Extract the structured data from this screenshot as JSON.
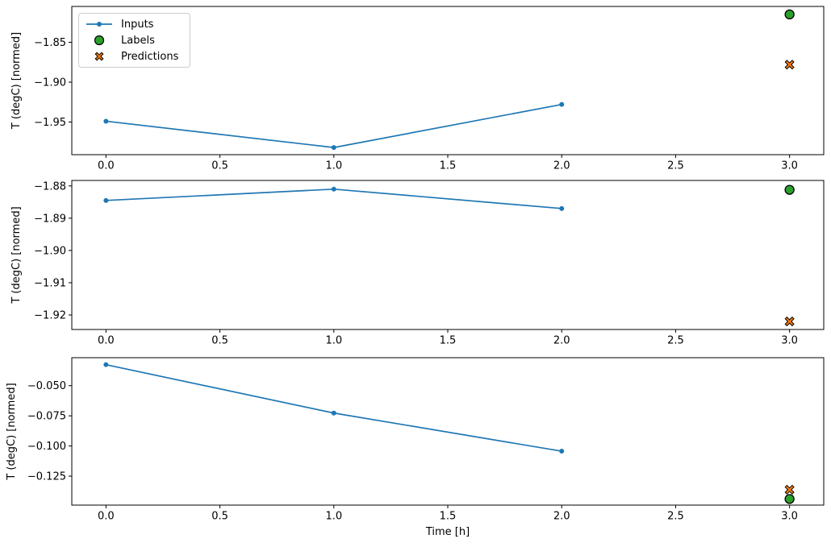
{
  "figure": {
    "background": "#ffffff",
    "xlabel": "Time [h]",
    "ylabel": "T (degC) [normed]",
    "colors": {
      "inputs": "#1f77b4",
      "labels": "#2ca02c",
      "predictions": "#ff7f0e",
      "marker_edge": "#000000",
      "spine": "#000000",
      "legend_border": "#cccccc"
    },
    "legend": {
      "position": "upper left",
      "items": [
        {
          "label": "Inputs",
          "marker": "line-with-dot",
          "color": "#1f77b4"
        },
        {
          "label": "Labels",
          "marker": "filled-circle",
          "color": "#2ca02c"
        },
        {
          "label": "Predictions",
          "marker": "filled-x",
          "color": "#ff7f0e"
        }
      ]
    }
  },
  "chart_data": [
    {
      "type": "line",
      "subplot": 1,
      "title": "",
      "xlabel": "",
      "ylabel": "T (degC) [normed]",
      "grid": false,
      "xlim": [
        -0.15,
        3.15
      ],
      "ylim": [
        -1.991,
        -1.805
      ],
      "xticks": [
        0.0,
        0.5,
        1.0,
        1.5,
        2.0,
        2.5,
        3.0
      ],
      "xtick_labels": [
        "0.0",
        "0.5",
        "1.0",
        "1.5",
        "2.0",
        "2.5",
        "3.0"
      ],
      "yticks": [
        -1.85,
        -1.9,
        -1.95
      ],
      "ytick_labels": [
        "−1.85",
        "−1.90",
        "−1.95"
      ],
      "series": [
        {
          "name": "Inputs",
          "type": "line",
          "color": "#1f77b4",
          "x": [
            0.0,
            1.0,
            2.0
          ],
          "y": [
            -1.949,
            -1.982,
            -1.928
          ]
        },
        {
          "name": "Labels",
          "type": "scatter",
          "marker": "circle",
          "color": "#2ca02c",
          "edge": "#000000",
          "x": [
            3.0
          ],
          "y": [
            -1.815
          ]
        },
        {
          "name": "Predictions",
          "type": "scatter",
          "marker": "X",
          "color": "#ff7f0e",
          "edge": "#000000",
          "x": [
            3.0
          ],
          "y": [
            -1.878
          ]
        }
      ]
    },
    {
      "type": "line",
      "subplot": 2,
      "title": "",
      "xlabel": "",
      "ylabel": "T (degC) [normed]",
      "grid": false,
      "xlim": [
        -0.15,
        3.15
      ],
      "ylim": [
        -1.9245,
        -1.8783
      ],
      "xticks": [
        0.0,
        0.5,
        1.0,
        1.5,
        2.0,
        2.5,
        3.0
      ],
      "xtick_labels": [
        "0.0",
        "0.5",
        "1.0",
        "1.5",
        "2.0",
        "2.5",
        "3.0"
      ],
      "yticks": [
        -1.88,
        -1.89,
        -1.9,
        -1.91,
        -1.92
      ],
      "ytick_labels": [
        "−1.88",
        "−1.89",
        "−1.90",
        "−1.91",
        "−1.92"
      ],
      "series": [
        {
          "name": "Inputs",
          "type": "line",
          "color": "#1f77b4",
          "x": [
            0.0,
            1.0,
            2.0
          ],
          "y": [
            -1.8845,
            -1.881,
            -1.887
          ]
        },
        {
          "name": "Labels",
          "type": "scatter",
          "marker": "circle",
          "color": "#2ca02c",
          "edge": "#000000",
          "x": [
            3.0
          ],
          "y": [
            -1.8812
          ]
        },
        {
          "name": "Predictions",
          "type": "scatter",
          "marker": "X",
          "color": "#ff7f0e",
          "edge": "#000000",
          "x": [
            3.0
          ],
          "y": [
            -1.922
          ]
        }
      ]
    },
    {
      "type": "line",
      "subplot": 3,
      "title": "",
      "xlabel": "Time [h]",
      "ylabel": "T (degC) [normed]",
      "grid": false,
      "xlim": [
        -0.15,
        3.15
      ],
      "ylim": [
        -0.149,
        -0.0268
      ],
      "xticks": [
        0.0,
        0.5,
        1.0,
        1.5,
        2.0,
        2.5,
        3.0
      ],
      "xtick_labels": [
        "0.0",
        "0.5",
        "1.0",
        "1.5",
        "2.0",
        "2.5",
        "3.0"
      ],
      "yticks": [
        -0.05,
        -0.075,
        -0.1,
        -0.125
      ],
      "ytick_labels": [
        "−0.050",
        "−0.075",
        "−0.100",
        "−0.125"
      ],
      "series": [
        {
          "name": "Inputs",
          "type": "line",
          "color": "#1f77b4",
          "x": [
            0.0,
            1.0,
            2.0
          ],
          "y": [
            -0.0326,
            -0.0727,
            -0.1043
          ]
        },
        {
          "name": "Labels",
          "type": "scatter",
          "marker": "circle",
          "color": "#2ca02c",
          "edge": "#000000",
          "x": [
            3.0
          ],
          "y": [
            -0.1439
          ]
        },
        {
          "name": "Predictions",
          "type": "scatter",
          "marker": "X",
          "color": "#ff7f0e",
          "edge": "#000000",
          "x": [
            3.0
          ],
          "y": [
            -0.1362
          ]
        }
      ]
    }
  ]
}
